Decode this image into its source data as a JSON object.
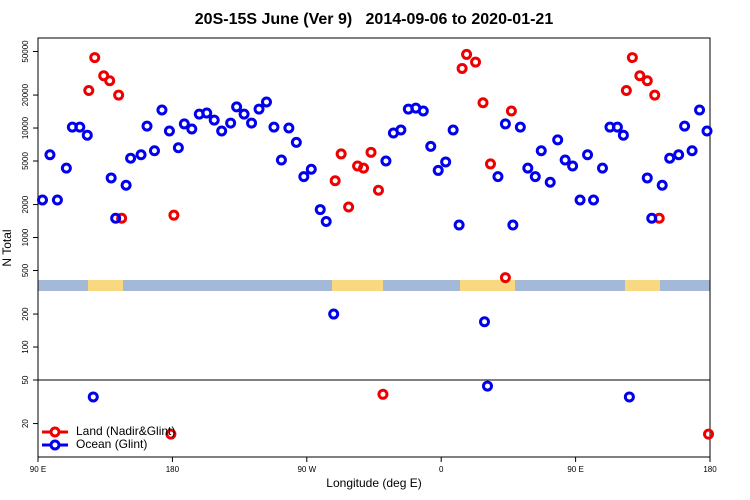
{
  "chart_data": {
    "type": "scatter",
    "title": "20S-15S June (Ver 9)   2014-09-06 to 2020-01-21",
    "x_label": "Longitude (deg E)",
    "y_label": "N Total",
    "log_y": true,
    "legend": "bottom-left",
    "xlim": [
      90,
      540
    ],
    "xticks": [
      {
        "value": 90,
        "label": "90 E"
      },
      180,
      {
        "value": 270,
        "label": "90 W"
      },
      {
        "value": 360,
        "label": "0"
      },
      {
        "value": 450,
        "label": "90 E"
      },
      {
        "value": 540,
        "label": "180"
      }
    ],
    "ylim": [
      9.9,
      66400
    ],
    "yticks": [
      20,
      50,
      100,
      200,
      500,
      1000,
      2000,
      5000,
      10000,
      20000,
      50000
    ],
    "reference_line": 50,
    "series": [
      {
        "name": "Land (Nadir&Glint)",
        "color": "#ee0000",
        "x": [
          124,
          128,
          134,
          138,
          144,
          146,
          181,
          179,
          289,
          293,
          298,
          304,
          308,
          313,
          318,
          321,
          374,
          377,
          383,
          388,
          393,
          403,
          407,
          484,
          488,
          493,
          498,
          503,
          506,
          539
        ],
        "values": [
          22000,
          44000,
          30000,
          27000,
          20000,
          1500,
          1600,
          16,
          3300,
          5800,
          1900,
          4500,
          4300,
          6000,
          2700,
          37,
          35000,
          47000,
          40000,
          17000,
          4700,
          430,
          14300,
          22000,
          44000,
          30000,
          27000,
          20000,
          1500,
          16
        ]
      },
      {
        "name": "Ocean (Glint)",
        "color": "#0000ee",
        "x": [
          93,
          98,
          103,
          109,
          113,
          118,
          123,
          127,
          139,
          142,
          149,
          152,
          159,
          163,
          168,
          173,
          178,
          184,
          188,
          193,
          198,
          203,
          208,
          213,
          219,
          223,
          228,
          233,
          238,
          243,
          248,
          253,
          258,
          263,
          268,
          273,
          279,
          283,
          288,
          323,
          328,
          333,
          338,
          343,
          348,
          353,
          358,
          363,
          368,
          372,
          389,
          391,
          398,
          403,
          408,
          413,
          418,
          423,
          427,
          433,
          438,
          443,
          448,
          453,
          458,
          462,
          468,
          473,
          478,
          482,
          486,
          498,
          501,
          508,
          513,
          519,
          523,
          528,
          533,
          538
        ],
        "values": [
          2200,
          5700,
          2200,
          4300,
          10200,
          10200,
          8600,
          35,
          3500,
          1500,
          3000,
          5300,
          5700,
          10400,
          6200,
          14600,
          9400,
          6600,
          10900,
          9800,
          13400,
          13700,
          11800,
          9400,
          11100,
          15600,
          13400,
          11100,
          14900,
          17300,
          10200,
          5100,
          10000,
          7400,
          3600,
          4200,
          1800,
          1400,
          200,
          5000,
          9000,
          9600,
          14900,
          15200,
          14300,
          6800,
          4100,
          4900,
          9600,
          1300,
          170,
          44,
          3600,
          10900,
          1300,
          10200,
          4300,
          3600,
          6200,
          3200,
          7800,
          5100,
          4500,
          2200,
          5700,
          2200,
          4300,
          10200,
          10200,
          8600,
          35,
          3500,
          1500,
          3000,
          5300,
          5700,
          10400,
          6200,
          14600,
          9400
        ]
      }
    ]
  }
}
